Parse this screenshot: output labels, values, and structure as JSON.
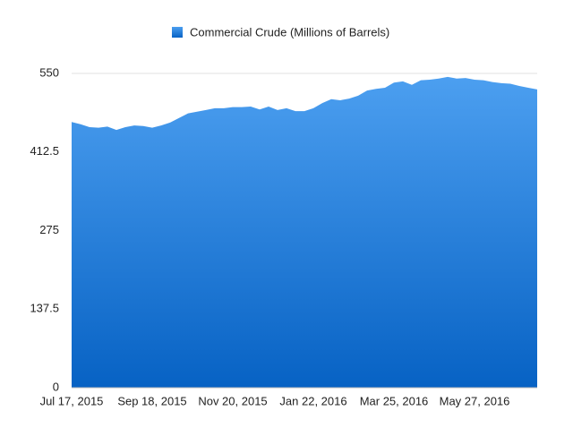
{
  "chart_data": {
    "type": "area",
    "categories": [
      "Jul 17, 2015",
      null,
      null,
      null,
      null,
      null,
      null,
      null,
      null,
      "Sep 18, 2015",
      null,
      null,
      null,
      null,
      null,
      null,
      null,
      null,
      "Nov 20, 2015",
      null,
      null,
      null,
      null,
      null,
      null,
      null,
      null,
      "Jan 22, 2016",
      null,
      null,
      null,
      null,
      null,
      null,
      null,
      null,
      "Mar 25, 2016",
      null,
      null,
      null,
      null,
      null,
      null,
      null,
      null,
      "May 27, 2016",
      null,
      null,
      null,
      null,
      null,
      null,
      null
    ],
    "series": [
      {
        "name": "Commercial Crude (Millions of Barrels)",
        "color": "#4c9ff0",
        "values": [
          465,
          461,
          456,
          455,
          457,
          451,
          456,
          459,
          458,
          455,
          459,
          464,
          472,
          480,
          483,
          486,
          489,
          489,
          491,
          491,
          492,
          487,
          492,
          486,
          489,
          484,
          484,
          489,
          498,
          505,
          503,
          506,
          511,
          520,
          523,
          525,
          534,
          536,
          530,
          538,
          539,
          541,
          544,
          541,
          542,
          539,
          538,
          535,
          533,
          532,
          528,
          525,
          522
        ]
      }
    ],
    "ylim": [
      0,
      550
    ],
    "yticks": [
      0,
      137.5,
      275,
      412.5,
      550
    ],
    "grid": true,
    "legend": "top"
  }
}
